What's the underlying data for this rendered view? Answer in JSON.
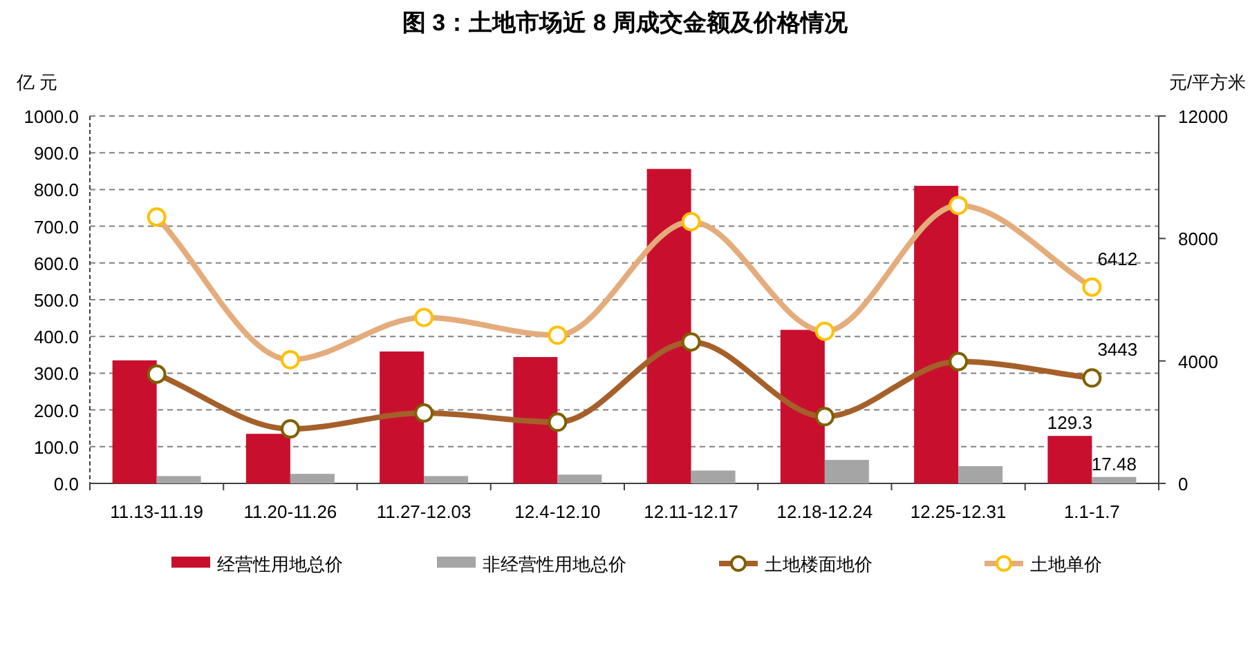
{
  "chart_data": {
    "type": "bar",
    "title": "图 3：土地市场近 8 周成交金额及价格情况",
    "ylabel": "亿 元",
    "y2label": "元/平方米",
    "categories": [
      "11.13-11.19",
      "11.20-11.26",
      "11.27-12.03",
      "12.4-12.10",
      "12.11-12.17",
      "12.18-12.24",
      "12.25-12.31",
      "1.1-1.7"
    ],
    "series": [
      {
        "name": "经营性用地总价",
        "color": "#c8102e",
        "values": [
          335,
          135,
          359,
          344,
          856,
          418,
          810,
          129.3
        ],
        "value_labels": [
          null,
          null,
          null,
          null,
          null,
          null,
          null,
          "129.3"
        ]
      },
      {
        "name": "非经营性用地总价",
        "color": "#a5a5a5",
        "values": [
          20,
          26,
          20,
          24,
          35,
          64,
          47,
          17.48
        ],
        "value_labels": [
          null,
          null,
          null,
          null,
          null,
          null,
          null,
          "17.48"
        ]
      },
      {
        "name": "土地楼面地价",
        "type": "line",
        "axis": "y2",
        "color": "#a5602a",
        "values": [
          3570,
          1780,
          2300,
          2000,
          4620,
          2180,
          3980,
          3443
        ],
        "value_labels": [
          null,
          null,
          null,
          null,
          null,
          null,
          null,
          "3443"
        ]
      },
      {
        "name": "土地单价",
        "type": "line",
        "axis": "y2",
        "color": "#e4ac7b",
        "values": [
          8700,
          4040,
          5420,
          4840,
          8550,
          4970,
          9080,
          6412
        ],
        "value_labels": [
          null,
          null,
          null,
          null,
          null,
          null,
          null,
          "6412"
        ]
      }
    ],
    "marker": "circle",
    "grid": "y",
    "legend": "bottom",
    "ylim": [
      0,
      1000
    ],
    "yticks": [
      {
        "value": 0,
        "label": "0.0"
      },
      {
        "value": 100,
        "label": "100.0"
      },
      {
        "value": 200,
        "label": "200.0"
      },
      {
        "value": 300,
        "label": "300.0"
      },
      {
        "value": 400,
        "label": "400.0"
      },
      {
        "value": 500,
        "label": "500.0"
      },
      {
        "value": 600,
        "label": "600.0"
      },
      {
        "value": 700,
        "label": "700.0"
      },
      {
        "value": 800,
        "label": "800.0"
      },
      {
        "value": 900,
        "label": "900.0"
      },
      {
        "value": 1000,
        "label": "1000.0"
      }
    ],
    "y2lim": [
      0,
      12000
    ],
    "y2ticks": [
      0,
      4000,
      8000,
      12000
    ]
  }
}
